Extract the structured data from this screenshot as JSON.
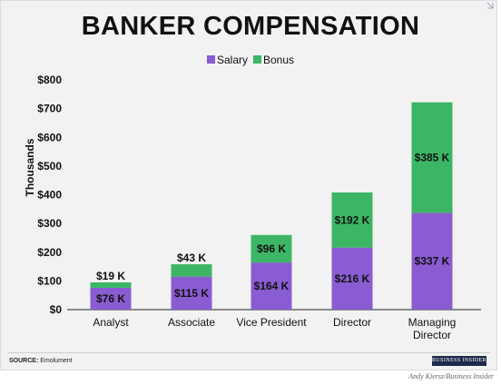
{
  "title": "BANKER COMPENSATION",
  "source_label": "SOURCE:",
  "source_text": "Emolument",
  "logo_text": "BUSINESS INSIDER",
  "credit": "Andy Kiersz/Business Insider",
  "colors": {
    "salary": "#8a5cd1",
    "bonus": "#3cb665",
    "background": "#f2f2f2"
  },
  "chart_data": {
    "type": "bar",
    "stacked": true,
    "title": "BANKER COMPENSATION",
    "ylabel": "Thousands",
    "xlabel": "",
    "ylim": [
      0,
      800
    ],
    "yticks": [
      0,
      100,
      200,
      300,
      400,
      500,
      600,
      700,
      800
    ],
    "ytick_labels": [
      "$0",
      "$100",
      "$200",
      "$300",
      "$400",
      "$500",
      "$600",
      "$700",
      "$800"
    ],
    "categories": [
      [
        "Analyst"
      ],
      [
        "Associate"
      ],
      [
        "Vice President"
      ],
      [
        "Director"
      ],
      [
        "Managing",
        "Director"
      ]
    ],
    "legend_position": "top-center",
    "grid": false,
    "series": [
      {
        "name": "Salary",
        "color": "#8a5cd1",
        "values": [
          76,
          115,
          164,
          216,
          337
        ],
        "labels": [
          "$76 K",
          "$115 K",
          "$164 K",
          "$216 K",
          "$337 K"
        ]
      },
      {
        "name": "Bonus",
        "color": "#3cb665",
        "values": [
          19,
          43,
          96,
          192,
          385
        ],
        "labels": [
          "$19 K",
          "$43 K",
          "$96 K",
          "$192 K",
          "$385 K"
        ]
      }
    ]
  }
}
